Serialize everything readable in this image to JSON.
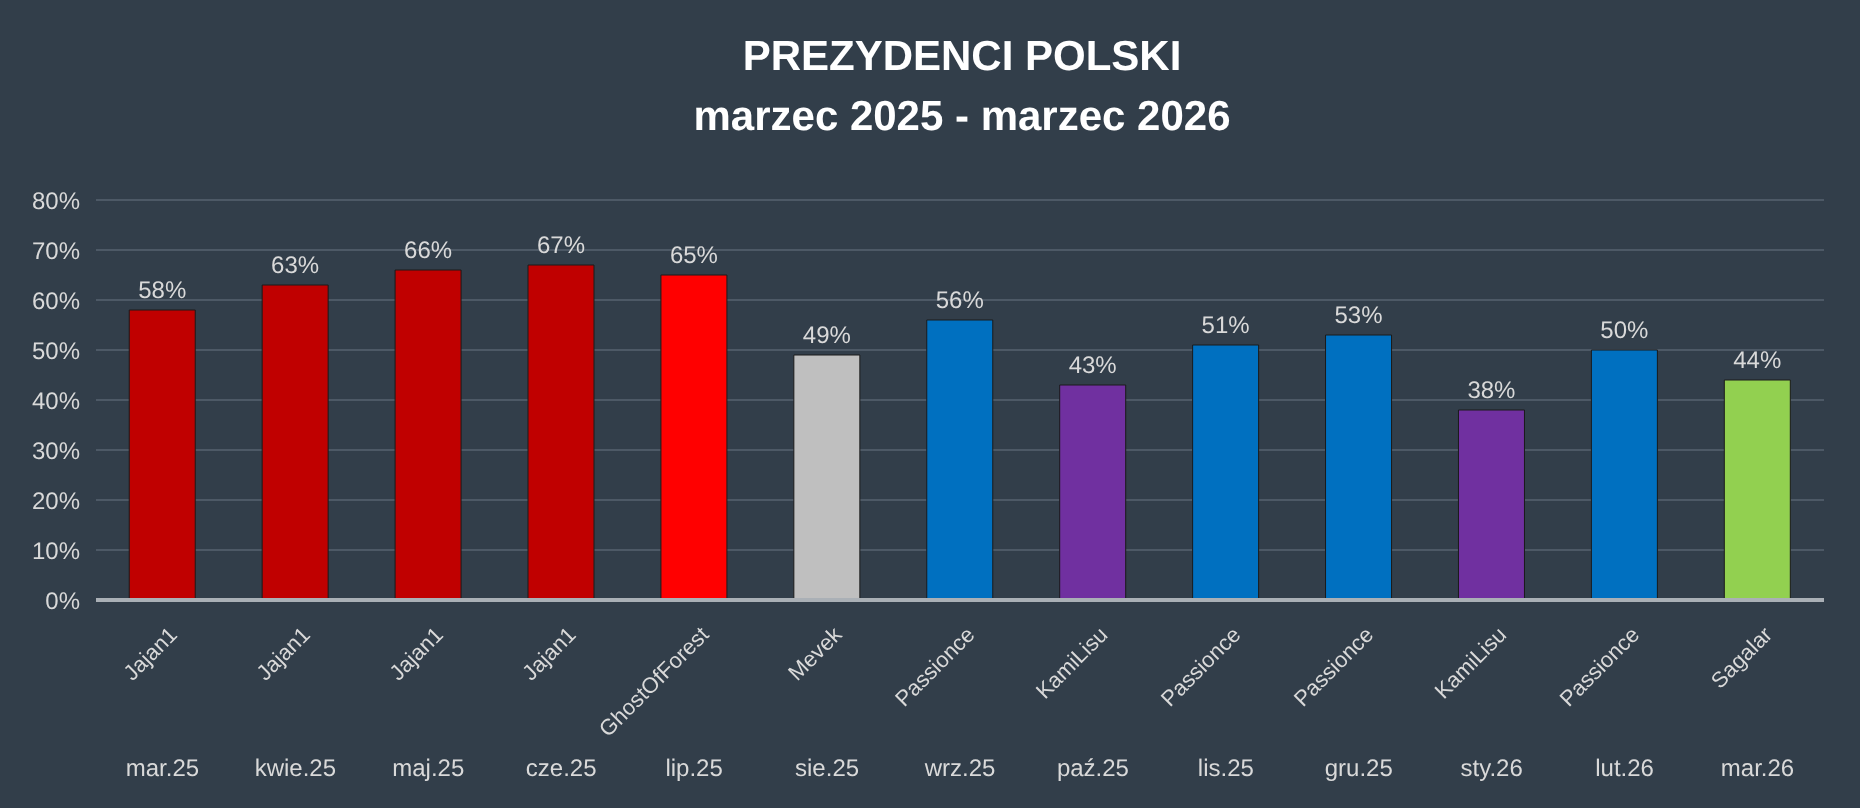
{
  "chart_data": {
    "type": "bar",
    "title": "PREZYDENCI POLSKI",
    "subtitle": "marzec 2025 - marzec 2026",
    "categories": [
      "mar.25",
      "kwie.25",
      "maj.25",
      "cze.25",
      "lip.25",
      "sie.25",
      "wrz.25",
      "paź.25",
      "lis.25",
      "gru.25",
      "sty.26",
      "lut.26",
      "mar.26"
    ],
    "values": [
      58,
      63,
      66,
      67,
      65,
      49,
      56,
      43,
      51,
      53,
      38,
      50,
      44
    ],
    "colors": [
      "#c00000",
      "#c00000",
      "#c00000",
      "#c00000",
      "#ff0000",
      "#bfbfbf",
      "#0070c0",
      "#7030a0",
      "#0070c0",
      "#0070c0",
      "#7030a0",
      "#0070c0",
      "#92d050"
    ],
    "value_labels": [
      "58%",
      "63%",
      "66%",
      "67%",
      "65%",
      "49%",
      "56%",
      "43%",
      "51%",
      "53%",
      "38%",
      "50%",
      "44%"
    ],
    "ylim": [
      0,
      80
    ],
    "yticks": [
      {
        "value": 0,
        "label": "0%"
      },
      {
        "value": 10,
        "label": "10%"
      },
      {
        "value": 20,
        "label": "20%"
      },
      {
        "value": 30,
        "label": "30%"
      },
      {
        "value": 40,
        "label": "40%"
      },
      {
        "value": 50,
        "label": "50%"
      },
      {
        "value": 60,
        "label": "60%"
      },
      {
        "value": 70,
        "label": "70%"
      },
      {
        "value": 80,
        "label": "80%"
      }
    ],
    "grid": "y",
    "annotations": [
      "Jajan1",
      "Jajan1",
      "Jajan1",
      "Jajan1",
      "GhostOfForest",
      "Mevek",
      "Passionce",
      "KamiLisu",
      "Passionce",
      "Passionce",
      "KamiLisu",
      "Passionce",
      "Sagalar"
    ]
  }
}
